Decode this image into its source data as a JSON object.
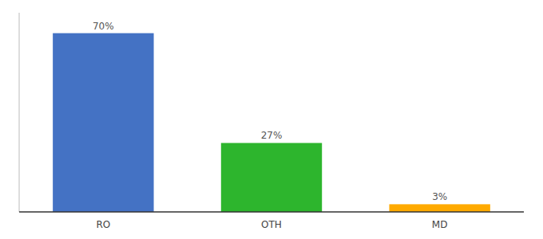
{
  "chart_data": {
    "type": "bar",
    "categories": [
      "RO",
      "OTH",
      "MD"
    ],
    "values": [
      70,
      27,
      3
    ],
    "value_labels": [
      "70%",
      "27%",
      "3%"
    ],
    "colors": [
      "#4472c4",
      "#2db52d",
      "#ffaa00"
    ],
    "ylim": [
      0,
      78
    ],
    "data_labels": true,
    "tick_labels": "x",
    "grid": false
  }
}
